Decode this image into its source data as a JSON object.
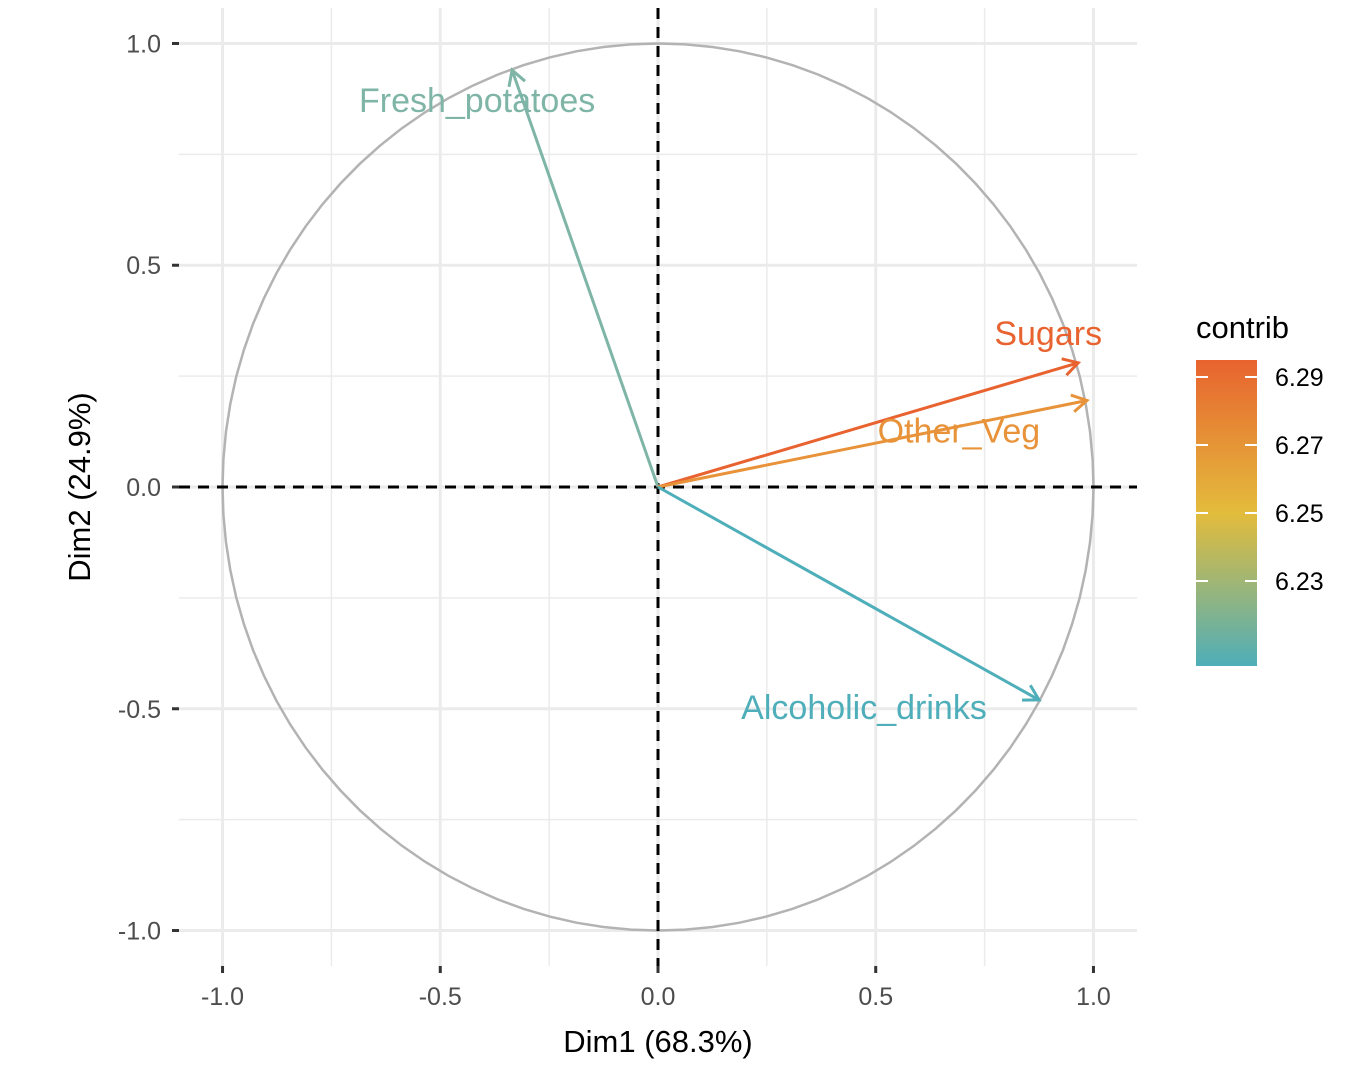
{
  "chart_data": {
    "type": "scatter",
    "subtype": "pca-variable-correlation-circle",
    "title": "",
    "xlabel": "Dim1 (68.3%)",
    "ylabel": "Dim2 (24.9%)",
    "xlim": [
      -1.1,
      1.1
    ],
    "ylim": [
      -1.08,
      1.08
    ],
    "x_ticks": [
      -1.0,
      -0.5,
      0.0,
      0.5,
      1.0
    ],
    "x_tick_labels": [
      "-1.0",
      "-0.5",
      "0.0",
      "0.5",
      "1.0"
    ],
    "y_ticks": [
      -1.0,
      -0.5,
      0.0,
      0.5,
      1.0
    ],
    "y_tick_labels": [
      "-1.0",
      "-0.5",
      "0.0",
      "0.5",
      "1.0"
    ],
    "grid": true,
    "unit_circle": true,
    "reference_lines": {
      "x": 0,
      "y": 0,
      "style": "dashed"
    },
    "variables": [
      {
        "name": "Fresh_potatoes",
        "x": -0.335,
        "y": 0.94,
        "contrib": 6.215,
        "color": "#7fb5a6"
      },
      {
        "name": "Sugars",
        "x": 0.965,
        "y": 0.28,
        "contrib": 6.295,
        "color": "#e8632f"
      },
      {
        "name": "Other_Veg",
        "x": 0.985,
        "y": 0.195,
        "contrib": 6.283,
        "color": "#e8933a"
      },
      {
        "name": "Alcoholic_drinks",
        "x": 0.875,
        "y": -0.48,
        "contrib": 6.205,
        "color": "#4eaeb9"
      }
    ],
    "legend": {
      "title": "contrib",
      "placement": "right",
      "range": [
        6.205,
        6.295
      ],
      "breaks": [
        6.29,
        6.27,
        6.25,
        6.23
      ],
      "break_labels": [
        "6.29",
        "6.27",
        "6.25",
        "6.23"
      ],
      "gradient": [
        "#4eaeb9",
        "#e3bc3c",
        "#e8632f"
      ]
    }
  },
  "colors": {
    "grid": "#ebebeb",
    "circle": "#b3b3b3",
    "reference": "#000000"
  }
}
